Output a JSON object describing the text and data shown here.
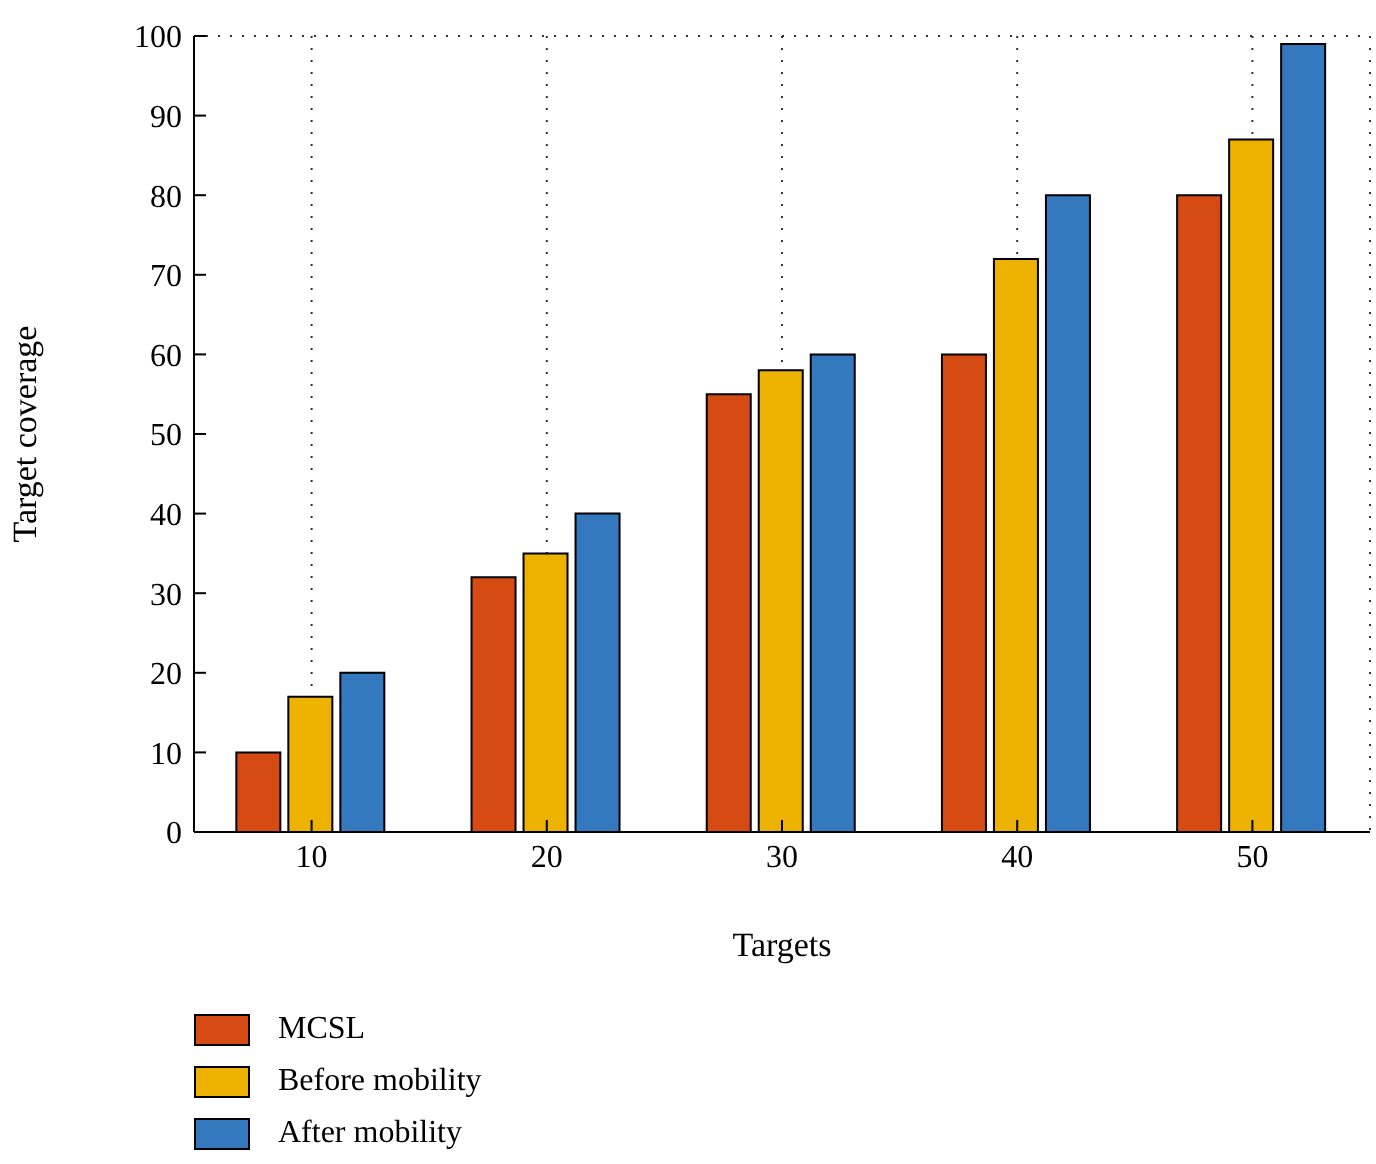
{
  "chart_data": {
    "type": "bar",
    "xlabel": "Targets",
    "ylabel": "Target coverage",
    "categories": [
      "10",
      "20",
      "30",
      "40",
      "50"
    ],
    "series": [
      {
        "name": "MCSL",
        "color": "#d64b13",
        "values": [
          10,
          32,
          55,
          60,
          80
        ]
      },
      {
        "name": "Before mobility",
        "color": "#edb100",
        "values": [
          17,
          35,
          58,
          72,
          87
        ]
      },
      {
        "name": "After mobility",
        "color": "#3478bd",
        "values": [
          20,
          40,
          60,
          80,
          99
        ]
      }
    ],
    "ylim": [
      0,
      100
    ],
    "yticks": [
      0,
      10,
      20,
      30,
      40,
      50,
      60,
      70,
      80,
      90,
      100
    ],
    "grid": true,
    "legend": "bottom left"
  }
}
